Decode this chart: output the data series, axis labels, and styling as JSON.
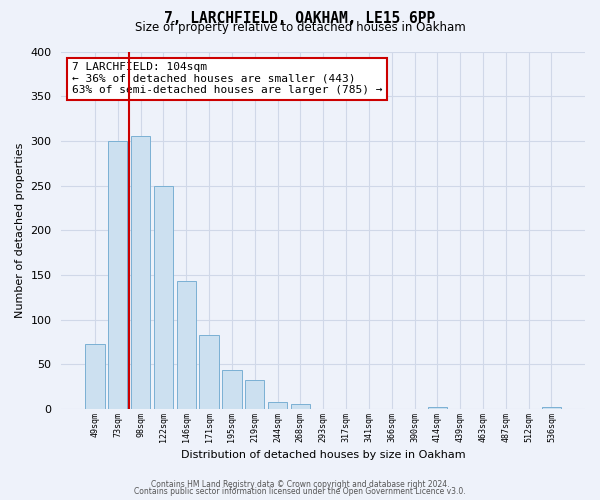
{
  "title": "7, LARCHFIELD, OAKHAM, LE15 6PP",
  "subtitle": "Size of property relative to detached houses in Oakham",
  "xlabel": "Distribution of detached houses by size in Oakham",
  "ylabel": "Number of detached properties",
  "bar_labels": [
    "49sqm",
    "73sqm",
    "98sqm",
    "122sqm",
    "146sqm",
    "171sqm",
    "195sqm",
    "219sqm",
    "244sqm",
    "268sqm",
    "293sqm",
    "317sqm",
    "341sqm",
    "366sqm",
    "390sqm",
    "414sqm",
    "439sqm",
    "463sqm",
    "487sqm",
    "512sqm",
    "536sqm"
  ],
  "bar_values": [
    73,
    300,
    305,
    249,
    143,
    83,
    44,
    32,
    8,
    6,
    0,
    0,
    0,
    0,
    0,
    2,
    0,
    0,
    0,
    0,
    2
  ],
  "bar_color": "#cce0f0",
  "bar_edge_color": "#7ab0d4",
  "vline_color": "#cc0000",
  "annotation_title": "7 LARCHFIELD: 104sqm",
  "annotation_line1": "← 36% of detached houses are smaller (443)",
  "annotation_line2": "63% of semi-detached houses are larger (785) →",
  "annotation_box_color": "#ffffff",
  "annotation_box_edge": "#cc0000",
  "ylim": [
    0,
    400
  ],
  "yticks": [
    0,
    50,
    100,
    150,
    200,
    250,
    300,
    350,
    400
  ],
  "footnote1": "Contains HM Land Registry data © Crown copyright and database right 2024.",
  "footnote2": "Contains public sector information licensed under the Open Government Licence v3.0.",
  "bg_color": "#eef2fa",
  "grid_color": "#d0d8e8"
}
